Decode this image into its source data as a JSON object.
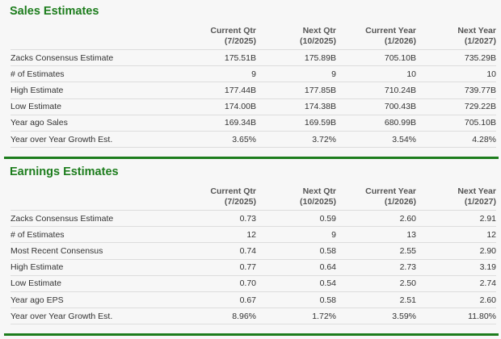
{
  "sales": {
    "title": "Sales Estimates",
    "columns": [
      {
        "label": "Current Qtr",
        "period": "(7/2025)"
      },
      {
        "label": "Next Qtr",
        "period": "(10/2025)"
      },
      {
        "label": "Current Year",
        "period": "(1/2026)"
      },
      {
        "label": "Next Year",
        "period": "(1/2027)"
      }
    ],
    "rows": [
      {
        "label": "Zacks Consensus Estimate",
        "values": [
          "175.51B",
          "175.89B",
          "705.10B",
          "735.29B"
        ]
      },
      {
        "label": "# of Estimates",
        "values": [
          "9",
          "9",
          "10",
          "10"
        ]
      },
      {
        "label": "High Estimate",
        "values": [
          "177.44B",
          "177.85B",
          "710.24B",
          "739.77B"
        ]
      },
      {
        "label": "Low Estimate",
        "values": [
          "174.00B",
          "174.38B",
          "700.43B",
          "729.22B"
        ]
      },
      {
        "label": "Year ago Sales",
        "values": [
          "169.34B",
          "169.59B",
          "680.99B",
          "705.10B"
        ]
      },
      {
        "label": "Year over Year Growth Est.",
        "values": [
          "3.65%",
          "3.72%",
          "3.54%",
          "4.28%"
        ]
      }
    ]
  },
  "earnings": {
    "title": "Earnings Estimates",
    "columns": [
      {
        "label": "Current Qtr",
        "period": "(7/2025)"
      },
      {
        "label": "Next Qtr",
        "period": "(10/2025)"
      },
      {
        "label": "Current Year",
        "period": "(1/2026)"
      },
      {
        "label": "Next Year",
        "period": "(1/2027)"
      }
    ],
    "rows": [
      {
        "label": "Zacks Consensus Estimate",
        "values": [
          "0.73",
          "0.59",
          "2.60",
          "2.91"
        ]
      },
      {
        "label": "# of Estimates",
        "values": [
          "12",
          "9",
          "13",
          "12"
        ]
      },
      {
        "label": "Most Recent Consensus",
        "values": [
          "0.74",
          "0.58",
          "2.55",
          "2.90"
        ]
      },
      {
        "label": "High Estimate",
        "values": [
          "0.77",
          "0.64",
          "2.73",
          "3.19"
        ]
      },
      {
        "label": "Low Estimate",
        "values": [
          "0.70",
          "0.54",
          "2.50",
          "2.74"
        ]
      },
      {
        "label": "Year ago EPS",
        "values": [
          "0.67",
          "0.58",
          "2.51",
          "2.60"
        ]
      },
      {
        "label": "Year over Year Growth Est.",
        "values": [
          "8.96%",
          "1.72%",
          "3.59%",
          "11.80%"
        ]
      }
    ]
  },
  "colors": {
    "accent": "#1d7d1d",
    "background": "#f7f7f7",
    "row_border": "#dddddd"
  }
}
